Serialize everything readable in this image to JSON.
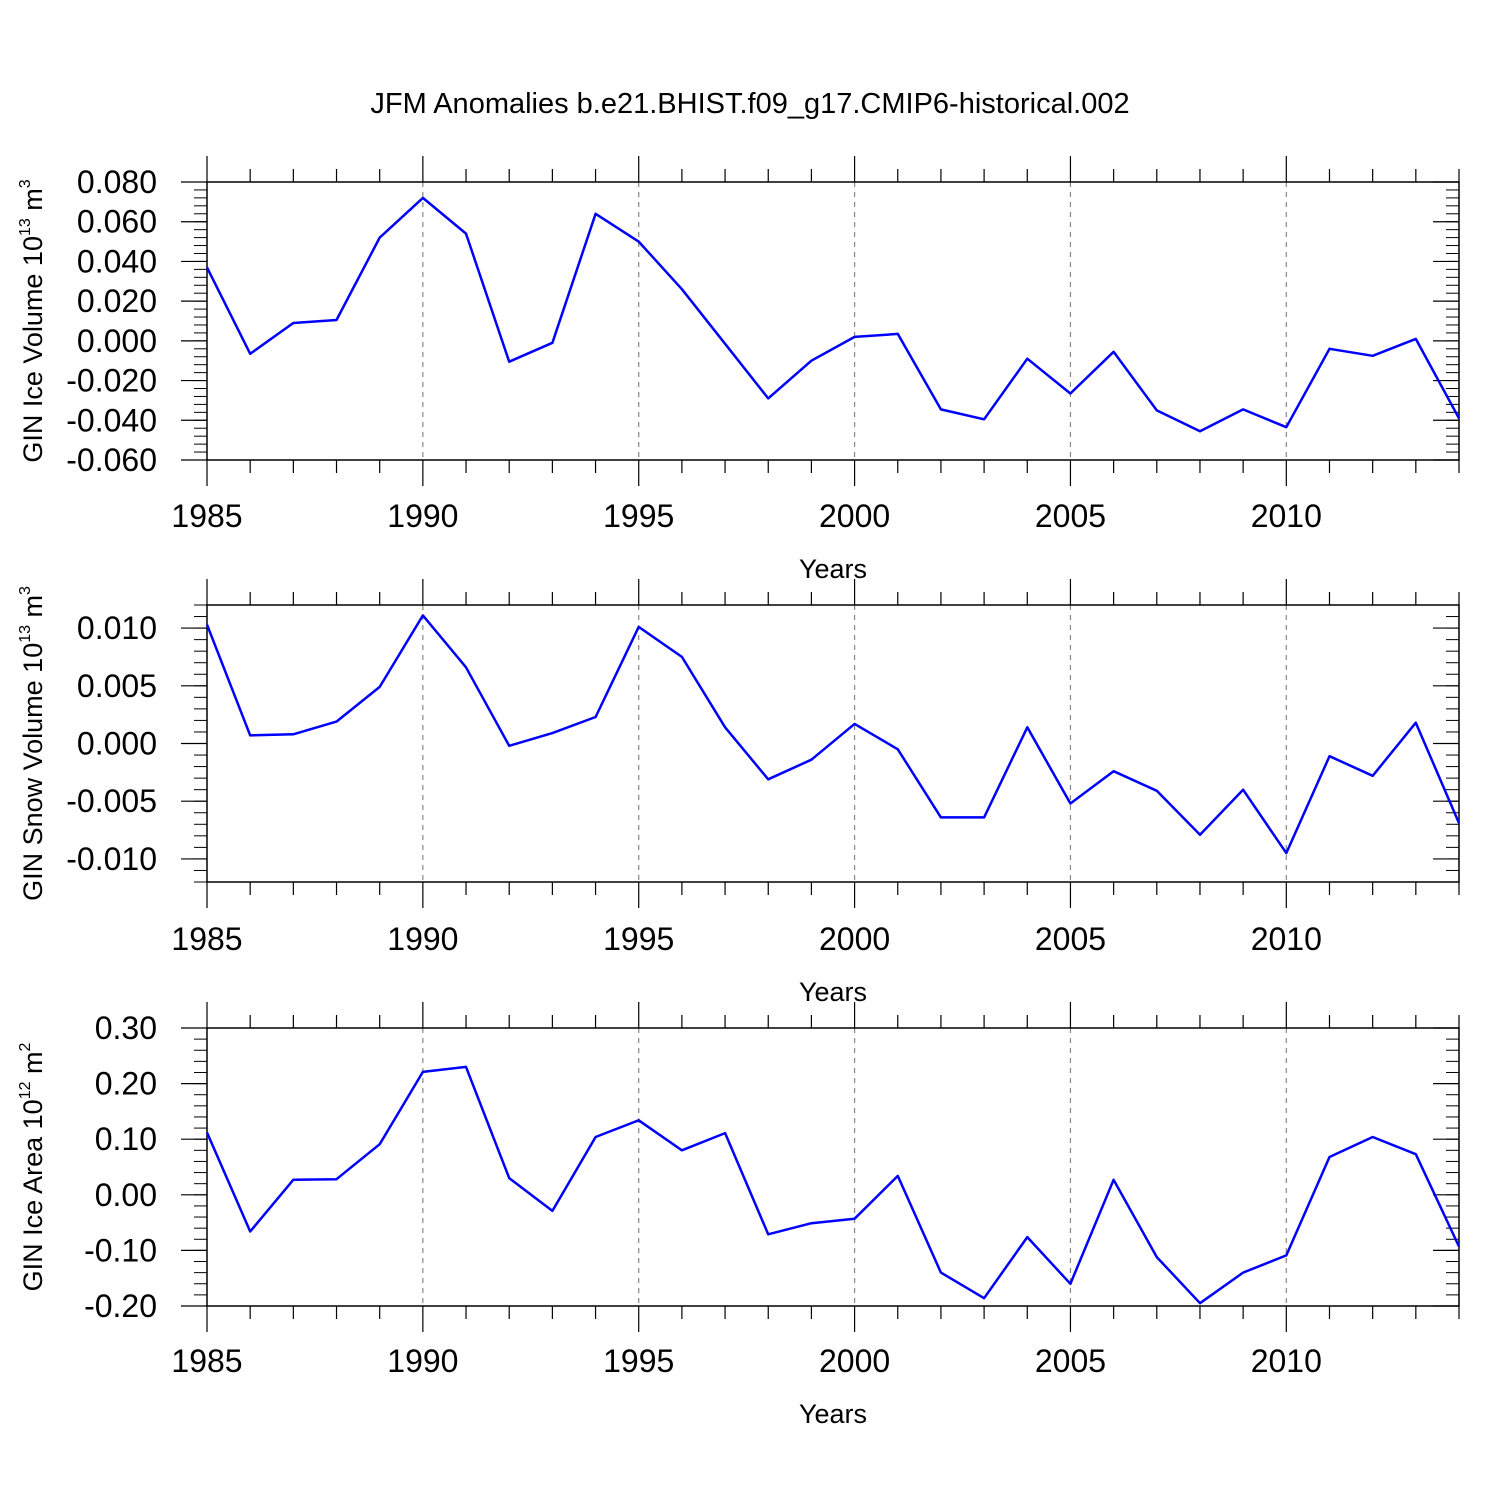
{
  "title": "JFM Anomalies b.e21.BHIST.f09_g17.CMIP6-historical.002",
  "chart_data": [
    {
      "type": "line",
      "ylabel": {
        "text": "GIN Ice Volume 10",
        "sup": "13",
        "unit": " m",
        "unit_sup": "3"
      },
      "xlabel": "Years",
      "xlim": [
        1985,
        2014
      ],
      "ylim": [
        -0.06,
        0.08
      ],
      "xticks": [
        1985,
        1990,
        1995,
        2000,
        2005,
        2010
      ],
      "yticks": [
        -0.06,
        -0.04,
        -0.02,
        0.0,
        0.02,
        0.04,
        0.06,
        0.08
      ],
      "ytick_labels": [
        "-0.060",
        "-0.040",
        "-0.020",
        "0.000",
        "0.020",
        "0.040",
        "0.060",
        "0.080"
      ],
      "grid": "vertical dashed at major x ticks",
      "color": "#0000ff",
      "x": [
        1985,
        1986,
        1987,
        1988,
        1989,
        1990,
        1991,
        1992,
        1993,
        1994,
        1995,
        1996,
        1997,
        1998,
        1999,
        2000,
        2001,
        2002,
        2003,
        2004,
        2005,
        2006,
        2007,
        2008,
        2009,
        2010,
        2011,
        2012,
        2013,
        2014
      ],
      "values": [
        0.037,
        -0.0065,
        0.009,
        0.0105,
        0.052,
        0.072,
        0.054,
        -0.0105,
        -0.001,
        0.064,
        0.05,
        0.026,
        -0.0015,
        -0.029,
        -0.01,
        0.002,
        0.0035,
        -0.0345,
        -0.0395,
        -0.009,
        -0.0265,
        -0.0055,
        -0.035,
        -0.0455,
        -0.0345,
        -0.0435,
        -0.004,
        -0.0075,
        0.001,
        -0.039
      ]
    },
    {
      "type": "line",
      "ylabel": {
        "text": "GIN Snow Volume 10",
        "sup": "13",
        "unit": " m",
        "unit_sup": "3"
      },
      "xlabel": "Years",
      "xlim": [
        1985,
        2014
      ],
      "ylim": [
        -0.012,
        0.012
      ],
      "xticks": [
        1985,
        1990,
        1995,
        2000,
        2005,
        2010
      ],
      "yticks": [
        -0.01,
        -0.005,
        0.0,
        0.005,
        0.01
      ],
      "ytick_labels": [
        "-0.010",
        "-0.005",
        "0.000",
        "0.005",
        "0.010"
      ],
      "grid": "vertical dashed at major x ticks",
      "color": "#0000ff",
      "x": [
        1985,
        1986,
        1987,
        1988,
        1989,
        1990,
        1991,
        1992,
        1993,
        1994,
        1995,
        1996,
        1997,
        1998,
        1999,
        2000,
        2001,
        2002,
        2003,
        2004,
        2005,
        2006,
        2007,
        2008,
        2009,
        2010,
        2011,
        2012,
        2013,
        2014
      ],
      "values": [
        0.0103,
        0.0007,
        0.0008,
        0.0019,
        0.0049,
        0.0111,
        0.0066,
        -0.0002,
        0.0009,
        0.0023,
        0.0101,
        0.0075,
        0.0014,
        -0.0031,
        -0.0014,
        0.0017,
        -0.0005,
        -0.0064,
        -0.0064,
        0.0014,
        -0.0052,
        -0.0024,
        -0.0041,
        -0.0079,
        -0.004,
        -0.0095,
        -0.0011,
        -0.0028,
        0.0018,
        -0.0069
      ]
    },
    {
      "type": "line",
      "ylabel": {
        "text": "GIN Ice Area 10",
        "sup": "12",
        "unit": " m",
        "unit_sup": "2"
      },
      "xlabel": "Years",
      "xlim": [
        1985,
        2014
      ],
      "ylim": [
        -0.2,
        0.3
      ],
      "xticks": [
        1985,
        1990,
        1995,
        2000,
        2005,
        2010
      ],
      "yticks": [
        -0.2,
        -0.1,
        0.0,
        0.1,
        0.2,
        0.3
      ],
      "ytick_labels": [
        "-0.20",
        "-0.10",
        "0.00",
        "0.10",
        "0.20",
        "0.30"
      ],
      "grid": "vertical dashed at major x ticks",
      "color": "#0000ff",
      "x": [
        1985,
        1986,
        1987,
        1988,
        1989,
        1990,
        1991,
        1992,
        1993,
        1994,
        1995,
        1996,
        1997,
        1998,
        1999,
        2000,
        2001,
        2002,
        2003,
        2004,
        2005,
        2006,
        2007,
        2008,
        2009,
        2010,
        2011,
        2012,
        2013,
        2014
      ],
      "values": [
        0.112,
        -0.066,
        0.027,
        0.028,
        0.091,
        0.221,
        0.23,
        0.03,
        -0.029,
        0.104,
        0.134,
        0.08,
        0.111,
        -0.071,
        -0.051,
        -0.043,
        0.034,
        -0.14,
        -0.186,
        -0.076,
        -0.16,
        0.027,
        -0.112,
        -0.195,
        -0.14,
        -0.109,
        0.068,
        0.104,
        0.073,
        -0.093
      ]
    }
  ]
}
